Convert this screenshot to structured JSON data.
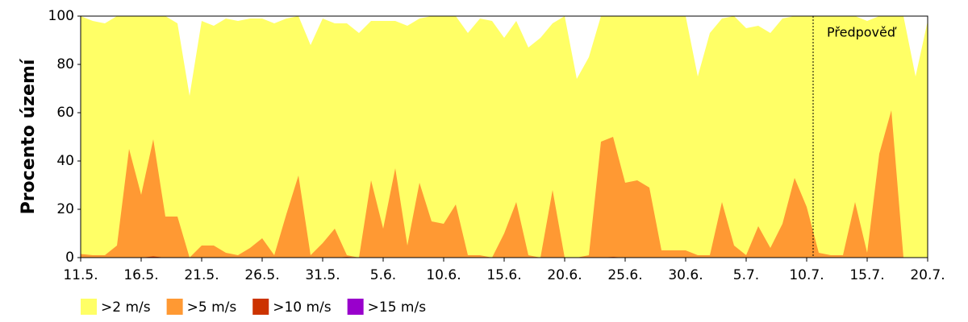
{
  "chart_data": {
    "type": "area",
    "ylabel": "Procento území",
    "annotation": "Předpověď",
    "categories": [
      "11.5.",
      null,
      null,
      null,
      null,
      "16.5.",
      null,
      null,
      null,
      null,
      "21.5.",
      null,
      null,
      null,
      null,
      "26.5.",
      null,
      null,
      null,
      null,
      "31.5.",
      null,
      null,
      null,
      null,
      "5.6.",
      null,
      null,
      null,
      null,
      "10.6.",
      null,
      null,
      null,
      null,
      "15.6.",
      null,
      null,
      null,
      null,
      "20.6.",
      null,
      null,
      null,
      null,
      "25.6.",
      null,
      null,
      null,
      null,
      "30.6.",
      null,
      null,
      null,
      null,
      "5.7.",
      null,
      null,
      null,
      null,
      "10.7.",
      null,
      null,
      null,
      null,
      "15.7.",
      null,
      null,
      null,
      null,
      "20.7."
    ],
    "series": [
      {
        "name": ">2 m/s",
        "color": "#ffff66",
        "values": [
          100,
          98,
          97,
          100,
          100,
          100,
          100,
          100,
          97,
          67,
          98,
          96,
          99,
          98,
          99,
          99,
          97,
          99,
          100,
          88,
          99,
          97,
          97,
          93,
          98,
          98,
          98,
          96,
          99,
          100,
          100,
          100,
          93,
          99,
          98,
          91,
          98,
          87,
          91,
          97,
          100,
          74,
          83,
          100,
          100,
          100,
          100,
          100,
          100,
          100,
          100,
          75,
          93,
          99,
          100,
          95,
          96,
          93,
          99,
          100,
          100,
          100,
          100,
          100,
          100,
          98,
          100,
          100,
          100,
          75,
          98
        ]
      },
      {
        "name": ">5 m/s",
        "color": "#ff9933",
        "values": [
          1.5,
          1,
          1,
          5,
          45,
          26,
          49,
          17,
          17,
          0,
          5,
          5,
          2,
          1,
          4,
          8,
          1,
          18,
          34,
          1,
          6,
          12,
          1,
          0,
          32,
          12,
          37,
          5,
          31,
          15,
          14,
          22,
          1,
          1,
          0,
          10,
          23,
          1,
          0,
          28,
          0,
          0,
          1,
          48,
          50,
          31,
          32,
          29,
          3,
          3,
          3,
          1,
          1,
          23,
          5,
          1,
          13,
          4,
          14,
          33,
          21,
          2,
          1,
          1,
          23,
          2,
          43,
          61,
          0,
          0,
          0
        ]
      },
      {
        "name": ">10 m/s",
        "color": "#cc3300",
        "values": [
          0,
          0,
          0,
          0,
          0,
          0,
          0.5,
          0,
          0,
          0,
          0,
          0,
          0,
          0,
          0,
          0,
          0,
          0,
          0,
          0,
          0,
          0,
          0.3,
          0,
          0,
          0,
          0,
          0,
          0,
          0,
          0,
          0,
          0,
          0,
          0,
          0,
          0,
          0,
          0,
          0,
          0,
          0,
          0,
          0,
          0.3,
          0,
          0,
          0,
          0,
          0,
          0,
          0,
          0,
          0,
          0,
          0,
          0,
          0,
          0,
          0,
          0,
          0,
          0,
          0,
          0,
          0,
          0,
          0,
          0,
          0,
          0
        ]
      },
      {
        "name": ">15 m/s",
        "color": "#9900cc",
        "values": [
          0,
          0,
          0,
          0,
          0,
          0,
          0,
          0,
          0,
          0,
          0,
          0,
          0,
          0,
          0,
          0,
          0,
          0,
          0,
          0,
          0,
          0,
          0,
          0,
          0,
          0,
          0,
          0,
          0,
          0,
          0,
          0,
          0,
          0,
          0,
          0,
          0,
          0,
          0,
          0,
          0,
          0,
          0,
          0,
          0,
          0,
          0,
          0,
          0,
          0,
          0,
          0,
          0,
          0,
          0,
          0,
          0,
          0,
          0,
          0,
          0,
          0,
          0,
          0,
          0,
          0,
          0,
          0,
          0,
          0,
          0
        ]
      }
    ],
    "ylim": [
      0,
      100
    ],
    "yticks": [
      0,
      20,
      40,
      60,
      80,
      100
    ]
  }
}
